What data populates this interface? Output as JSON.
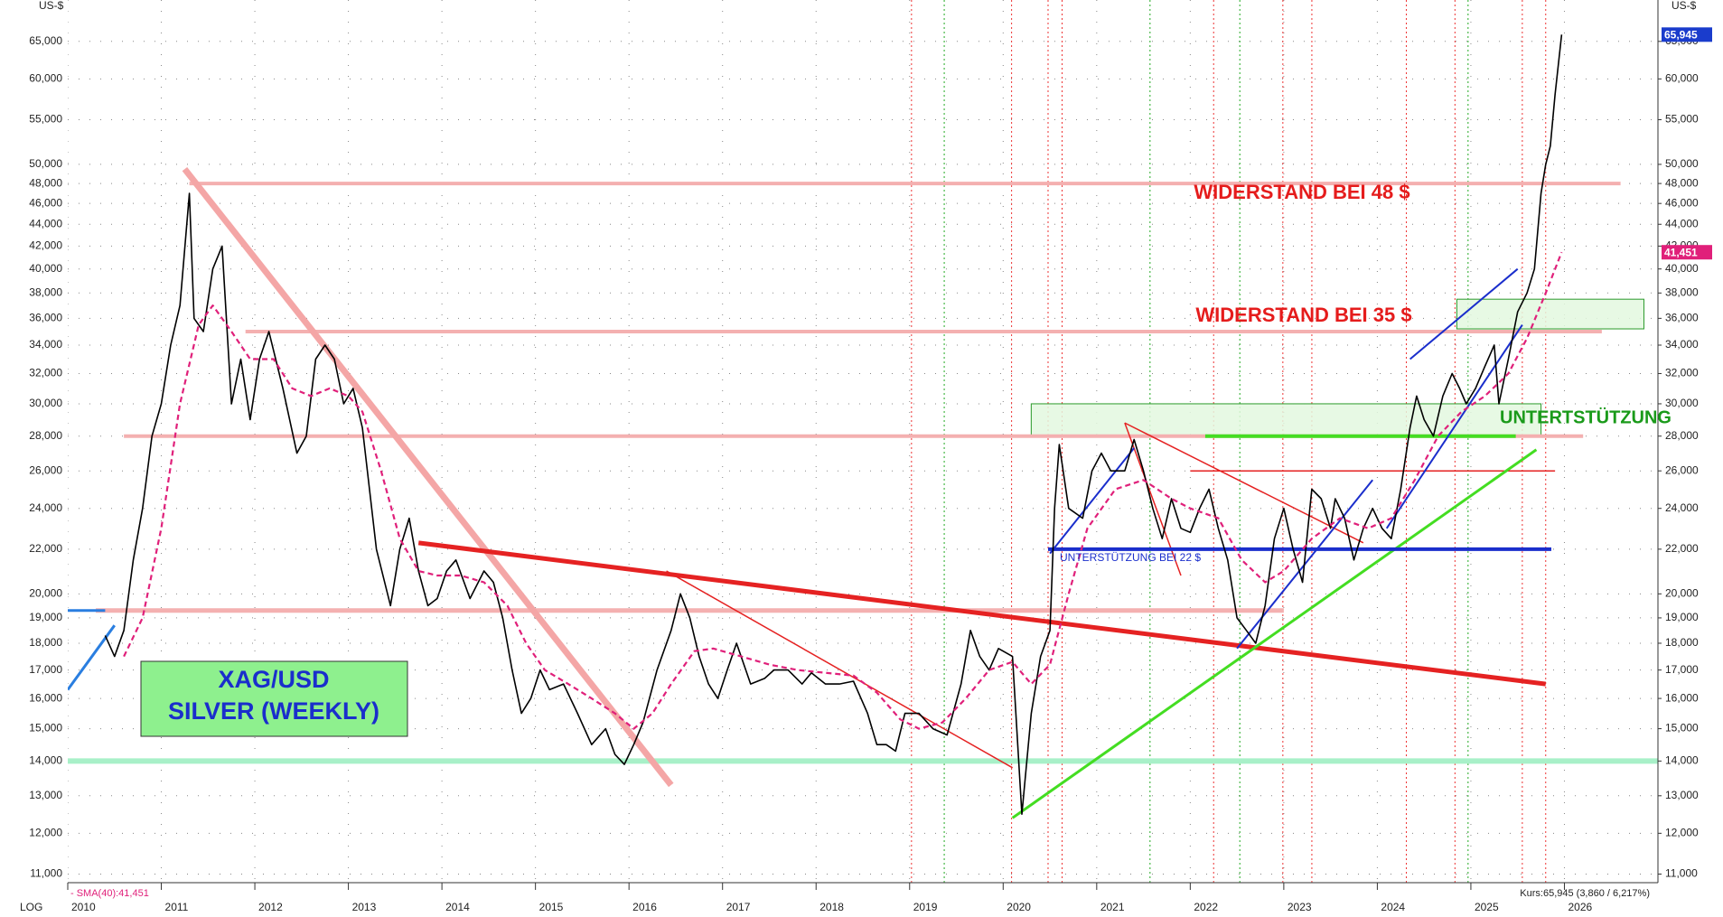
{
  "chart_data": {
    "type": "line",
    "log_scale": true,
    "grid": true,
    "texts": {
      "unit_left": "US-$",
      "unit_right": "US-$",
      "scale": "LOG",
      "resistance_48": "WIDERSTAND BEI 48 $",
      "resistance_35": "WIDERSTAND BEI 35 $",
      "support_28": "UNTERTSTÜTZUNG",
      "support_22": "UNTERSTÜTZUNG BEI 22 $",
      "symbol": "XAG/USD",
      "name": "SILVER (WEEKLY)",
      "sma_info": "- SMA(40):41,451",
      "price_info": "Kurs:65,945 (3,860 / 6,217%)"
    },
    "xlim": [
      2010,
      2027
    ],
    "xticks": [
      2010,
      2011,
      2012,
      2013,
      2014,
      2015,
      2016,
      2017,
      2018,
      2019,
      2020,
      2021,
      2022,
      2023,
      2024,
      2025,
      2026
    ],
    "ylim": [
      10.8,
      71
    ],
    "yticks": [
      {
        "value": 11,
        "label": "11,000"
      },
      {
        "value": 12,
        "label": "12,000"
      },
      {
        "value": 13,
        "label": "13,000"
      },
      {
        "value": 14,
        "label": "14,000"
      },
      {
        "value": 15,
        "label": "15,000"
      },
      {
        "value": 16,
        "label": "16,000"
      },
      {
        "value": 17,
        "label": "17,000"
      },
      {
        "value": 18,
        "label": "18,000"
      },
      {
        "value": 19,
        "label": "19,000"
      },
      {
        "value": 20,
        "label": "20,000"
      },
      {
        "value": 22,
        "label": "22,000"
      },
      {
        "value": 24,
        "label": "24,000"
      },
      {
        "value": 26,
        "label": "26,000"
      },
      {
        "value": 28,
        "label": "28,000"
      },
      {
        "value": 30,
        "label": "30,000"
      },
      {
        "value": 32,
        "label": "32,000"
      },
      {
        "value": 34,
        "label": "34,000"
      },
      {
        "value": 36,
        "label": "36,000"
      },
      {
        "value": 38,
        "label": "38,000"
      },
      {
        "value": 40,
        "label": "40,000"
      },
      {
        "value": 42,
        "label": "42,000"
      },
      {
        "value": 44,
        "label": "44,000"
      },
      {
        "value": 46,
        "label": "46,000"
      },
      {
        "value": 48,
        "label": "48,000"
      },
      {
        "value": 50,
        "label": "50,000"
      },
      {
        "value": 55,
        "label": "55,000"
      },
      {
        "value": 60,
        "label": "60,000"
      },
      {
        "value": 65,
        "label": "65,000"
      }
    ],
    "series": [
      {
        "name": "XAG/USD",
        "color": "#000000",
        "x": [
          2010.4,
          2010.5,
          2010.6,
          2010.7,
          2010.8,
          2010.9,
          2011.0,
          2011.1,
          2011.2,
          2011.3,
          2011.35,
          2011.45,
          2011.55,
          2011.65,
          2011.75,
          2011.85,
          2011.95,
          2012.05,
          2012.15,
          2012.3,
          2012.45,
          2012.55,
          2012.65,
          2012.75,
          2012.85,
          2012.95,
          2013.05,
          2013.15,
          2013.3,
          2013.45,
          2013.55,
          2013.65,
          2013.75,
          2013.85,
          2013.95,
          2014.05,
          2014.15,
          2014.3,
          2014.45,
          2014.55,
          2014.65,
          2014.75,
          2014.85,
          2014.95,
          2015.05,
          2015.15,
          2015.3,
          2015.45,
          2015.6,
          2015.75,
          2015.85,
          2015.95,
          2016.05,
          2016.15,
          2016.3,
          2016.45,
          2016.55,
          2016.65,
          2016.75,
          2016.85,
          2016.95,
          2017.05,
          2017.15,
          2017.3,
          2017.45,
          2017.55,
          2017.7,
          2017.85,
          2017.95,
          2018.1,
          2018.25,
          2018.4,
          2018.55,
          2018.65,
          2018.75,
          2018.85,
          2018.95,
          2019.1,
          2019.25,
          2019.4,
          2019.55,
          2019.65,
          2019.75,
          2019.85,
          2019.95,
          2020.1,
          2020.2,
          2020.3,
          2020.4,
          2020.5,
          2020.55,
          2020.6,
          2020.7,
          2020.85,
          2020.95,
          2021.05,
          2021.15,
          2021.3,
          2021.4,
          2021.5,
          2021.6,
          2021.7,
          2021.8,
          2021.9,
          2022.0,
          2022.1,
          2022.2,
          2022.3,
          2022.4,
          2022.5,
          2022.6,
          2022.7,
          2022.8,
          2022.9,
          2023.0,
          2023.1,
          2023.2,
          2023.3,
          2023.4,
          2023.5,
          2023.55,
          2023.65,
          2023.75,
          2023.85,
          2023.95,
          2024.05,
          2024.15,
          2024.25,
          2024.35,
          2024.42,
          2024.5,
          2024.6,
          2024.7,
          2024.8,
          2024.88,
          2024.95,
          2025.05,
          2025.15,
          2025.25,
          2025.3,
          2025.4,
          2025.5,
          2025.6,
          2025.68,
          2025.75,
          2025.8,
          2025.85,
          2025.9,
          2025.97
        ],
        "values": [
          18.3,
          17.5,
          18.5,
          21.5,
          24,
          28,
          30,
          34,
          37,
          47,
          36,
          35,
          40,
          42,
          30,
          33,
          29,
          33,
          35,
          31,
          27,
          28,
          33,
          34,
          33,
          30,
          31,
          28.5,
          22,
          19.5,
          22,
          23.5,
          21,
          19.5,
          19.8,
          21,
          21.5,
          19.8,
          21,
          20.5,
          19,
          17,
          15.5,
          16,
          17,
          16.3,
          16.5,
          15.5,
          14.5,
          15,
          14.2,
          13.9,
          14.5,
          15.2,
          17,
          18.5,
          20,
          19,
          17.5,
          16.5,
          16,
          17,
          18,
          16.5,
          16.7,
          17,
          17,
          16.5,
          16.9,
          16.5,
          16.5,
          16.6,
          15.5,
          14.5,
          14.5,
          14.3,
          15.5,
          15.5,
          15,
          14.8,
          16.5,
          18.5,
          17.5,
          17,
          17.8,
          17.5,
          12.5,
          15.5,
          17.5,
          18.5,
          24,
          27.5,
          24,
          23.5,
          26,
          27,
          26,
          26,
          27.8,
          26,
          24,
          22.5,
          24.5,
          23,
          22.8,
          24,
          25,
          23,
          21.5,
          19,
          18.5,
          18,
          19.5,
          22.5,
          24,
          22,
          20.5,
          25,
          24.5,
          23,
          24.5,
          23.5,
          21.5,
          23,
          24,
          23,
          22.5,
          25,
          28.5,
          30.5,
          29,
          28,
          30.5,
          32,
          31,
          30,
          31,
          32.5,
          34,
          30,
          33,
          36.5,
          38,
          40,
          47,
          50,
          52,
          58,
          65.945
        ]
      },
      {
        "name": "SMA(40)",
        "color": "#e0207a",
        "dashed": true,
        "x": [
          2010.6,
          2010.8,
          2011.0,
          2011.2,
          2011.4,
          2011.55,
          2011.75,
          2011.95,
          2012.2,
          2012.4,
          2012.6,
          2012.8,
          2013.0,
          2013.15,
          2013.35,
          2013.55,
          2013.75,
          2013.95,
          2014.2,
          2014.45,
          2014.7,
          2014.9,
          2015.1,
          2015.35,
          2015.6,
          2015.85,
          2016.05,
          2016.25,
          2016.45,
          2016.7,
          2016.9,
          2017.2,
          2017.5,
          2017.8,
          2018.1,
          2018.4,
          2018.65,
          2018.9,
          2019.1,
          2019.35,
          2019.6,
          2019.85,
          2020.1,
          2020.3,
          2020.5,
          2020.7,
          2020.9,
          2021.2,
          2021.5,
          2021.8,
          2022.0,
          2022.3,
          2022.55,
          2022.8,
          2023.0,
          2023.3,
          2023.6,
          2023.9,
          2024.15,
          2024.4,
          2024.65,
          2024.9,
          2025.15,
          2025.4,
          2025.6,
          2025.8,
          2025.97
        ],
        "values": [
          17.5,
          19,
          23,
          30,
          35.5,
          37,
          35,
          33,
          33,
          31,
          30.5,
          31,
          30.5,
          29.5,
          26,
          22.5,
          21,
          20.8,
          20.8,
          20.5,
          19.5,
          18,
          17,
          16.5,
          16,
          15.5,
          15,
          15.5,
          16.5,
          17.7,
          17.8,
          17.5,
          17.2,
          17,
          16.9,
          16.8,
          16.2,
          15.3,
          15,
          15.2,
          16,
          17,
          17.3,
          16.5,
          17.2,
          20,
          23,
          25,
          25.5,
          24.5,
          24,
          23.5,
          21.5,
          20.5,
          21,
          22.5,
          23.5,
          23,
          23.5,
          25.5,
          28,
          29.5,
          30.5,
          32,
          34.5,
          38,
          41.451
        ]
      }
    ],
    "last_labels": [
      {
        "value": 65.945,
        "label": "65,945",
        "color": "#1a3ccc"
      },
      {
        "value": 41.451,
        "label": "41,451",
        "color": "#e0207a"
      }
    ],
    "vlines": [
      {
        "x": 2019.02,
        "color": "#e33"
      },
      {
        "x": 2020.09,
        "color": "#e33"
      },
      {
        "x": 2020.48,
        "color": "#e33"
      },
      {
        "x": 2020.63,
        "color": "#e33"
      },
      {
        "x": 2022.25,
        "color": "#e33"
      },
      {
        "x": 2022.99,
        "color": "#e33"
      },
      {
        "x": 2023.3,
        "color": "#e33"
      },
      {
        "x": 2024.31,
        "color": "#e33"
      },
      {
        "x": 2024.83,
        "color": "#e33"
      },
      {
        "x": 2025.55,
        "color": "#e33"
      },
      {
        "x": 2025.8,
        "color": "#e33"
      },
      {
        "x": 2019.37,
        "color": "#2a2"
      },
      {
        "x": 2021.57,
        "color": "#2a2"
      },
      {
        "x": 2022.53,
        "color": "#2a2"
      },
      {
        "x": 2024.97,
        "color": "#2a2"
      }
    ],
    "boxes": [
      {
        "x": [
          2020.3,
          2025.75
        ],
        "y": [
          28,
          30
        ],
        "color": "#2a9a2a"
      },
      {
        "x": [
          2024.85,
          2026.85
        ],
        "y": [
          35.2,
          37.5
        ],
        "color": "#2a9a2a"
      }
    ],
    "lines": [
      {
        "x": [
          2010,
          2027
        ],
        "y": [
          14,
          14
        ],
        "color": "#a8f0c8",
        "width": 6
      },
      {
        "x": [
          2010.3,
          2023.0
        ],
        "y": [
          19.3,
          19.3
        ],
        "color": "#f4b0b0",
        "width": 5
      },
      {
        "x": [
          2010.6,
          2026.2
        ],
        "y": [
          28,
          28
        ],
        "color": "#f4b0b0",
        "width": 4
      },
      {
        "x": [
          2011.9,
          2026.4
        ],
        "y": [
          35,
          35
        ],
        "color": "#f4b0b0",
        "width": 4
      },
      {
        "x": [
          2011.3,
          2026.6
        ],
        "y": [
          48,
          48
        ],
        "color": "#f4b0b0",
        "width": 4
      },
      {
        "x": [
          2011.25,
          2016.45
        ],
        "y": [
          49.5,
          13.3
        ],
        "color": "#f4a6a6",
        "width": 7
      },
      {
        "x": [
          2013.75,
          2025.8
        ],
        "y": [
          22.3,
          16.5
        ],
        "color": "#e52222",
        "width": 5
      },
      {
        "x": [
          2016.4,
          2020.1
        ],
        "y": [
          21,
          13.8
        ],
        "color": "#e52222",
        "width": 1.5
      },
      {
        "x": [
          2021.3,
          2023.85
        ],
        "y": [
          28.8,
          22.3
        ],
        "color": "#e52222",
        "width": 1.5
      },
      {
        "x": [
          2021.3,
          2021.9
        ],
        "y": [
          28.8,
          20.8
        ],
        "color": "#e52222",
        "width": 1.5
      },
      {
        "x": [
          2022.0,
          2025.9
        ],
        "y": [
          26,
          26
        ],
        "color": "#e52222",
        "width": 1.5
      },
      {
        "x": [
          2020.1,
          2025.7
        ],
        "y": [
          12.4,
          27.2
        ],
        "color": "#44dd22",
        "width": 3
      },
      {
        "x": [
          2022.16,
          2025.48
        ],
        "y": [
          28,
          28
        ],
        "color": "#44dd22",
        "width": 4
      },
      {
        "x": [
          2020.48,
          2025.86
        ],
        "y": [
          22,
          22
        ],
        "color": "#1a2ecc",
        "width": 4
      },
      {
        "x": [
          2010.0,
          2010.5
        ],
        "y": [
          16.3,
          18.7
        ],
        "color": "#2a7ee0",
        "width": 3
      },
      {
        "x": [
          2010.0,
          2010.4
        ],
        "y": [
          19.3,
          19.3
        ],
        "color": "#2a7ee0",
        "width": 3
      },
      {
        "x": [
          2020.5,
          2021.4
        ],
        "y": [
          21.8,
          27.3
        ],
        "color": "#1a2ecc",
        "width": 2
      },
      {
        "x": [
          2022.5,
          2023.95
        ],
        "y": [
          17.8,
          25.5
        ],
        "color": "#1a2ecc",
        "width": 2
      },
      {
        "x": [
          2024.1,
          2025.55
        ],
        "y": [
          23,
          35.5
        ],
        "color": "#1a2ecc",
        "width": 2
      },
      {
        "x": [
          2024.35,
          2025.5
        ],
        "y": [
          33,
          40
        ],
        "color": "#1a2ecc",
        "width": 2
      }
    ]
  }
}
